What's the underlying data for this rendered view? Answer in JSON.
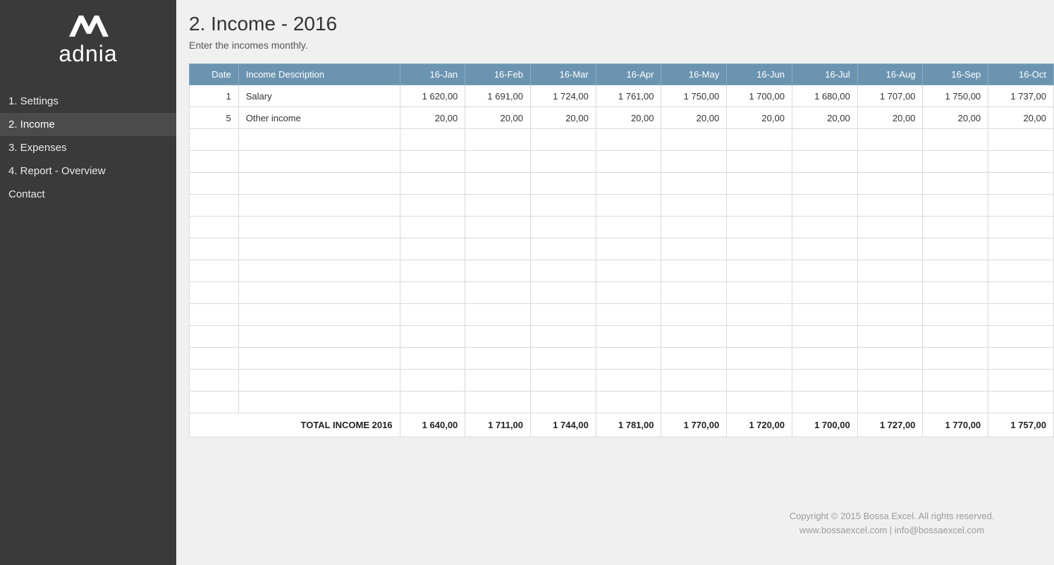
{
  "brand": "adnia",
  "sidebar": {
    "items": [
      {
        "label": "1. Settings",
        "active": false
      },
      {
        "label": "2. Income",
        "active": true
      },
      {
        "label": "3. Expenses",
        "active": false
      },
      {
        "label": "4. Report - Overview",
        "active": false
      },
      {
        "label": "Contact",
        "active": false
      }
    ]
  },
  "page": {
    "title": "2. Income - 2016",
    "subtitle": "Enter the incomes monthly."
  },
  "table": {
    "header_background": "#6b94b0",
    "header_text_color": "#ffffff",
    "border_color": "#d9d9d9",
    "columns": {
      "date": "Date",
      "description": "Income Description",
      "months": [
        "16-Jan",
        "16-Feb",
        "16-Mar",
        "16-Apr",
        "16-May",
        "16-Jun",
        "16-Jul",
        "16-Aug",
        "16-Sep",
        "16-Oct"
      ]
    },
    "rows": [
      {
        "date": "1",
        "description": "Salary",
        "values": [
          "1 620,00",
          "1 691,00",
          "1 724,00",
          "1 761,00",
          "1 750,00",
          "1 700,00",
          "1 680,00",
          "1 707,00",
          "1 750,00",
          "1 737,00"
        ]
      },
      {
        "date": "5",
        "description": "Other income",
        "values": [
          "20,00",
          "20,00",
          "20,00",
          "20,00",
          "20,00",
          "20,00",
          "20,00",
          "20,00",
          "20,00",
          "20,00"
        ]
      }
    ],
    "empty_rows": 13,
    "total": {
      "label": "TOTAL INCOME 2016",
      "values": [
        "1 640,00",
        "1 711,00",
        "1 744,00",
        "1 781,00",
        "1 770,00",
        "1 720,00",
        "1 700,00",
        "1 727,00",
        "1 770,00",
        "1 757,00"
      ]
    }
  },
  "footer": {
    "line1": "Copyright © 2015 Bossa Excel. All rights reserved.",
    "line2": "www.bossaexcel.com | info@bossaexcel.com"
  }
}
